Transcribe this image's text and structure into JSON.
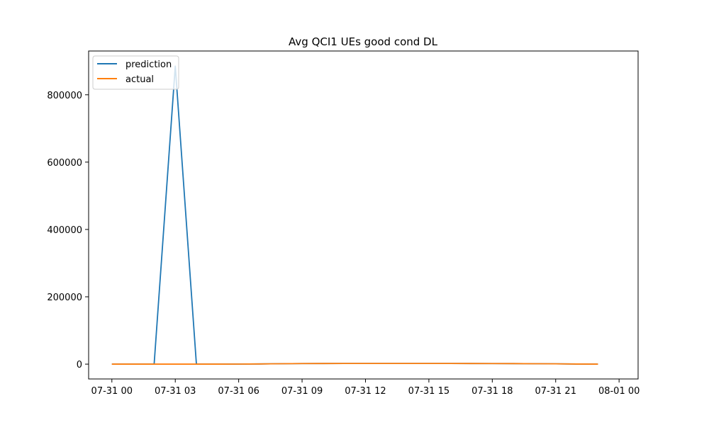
{
  "chart_data": {
    "type": "line",
    "title": "Avg QCI1 UEs good cond DL",
    "xlabel": "",
    "ylabel": "",
    "x": [
      "07-31 00:00",
      "07-31 01:00",
      "07-31 02:00",
      "07-31 03:00",
      "07-31 04:00",
      "07-31 05:00",
      "07-31 06:00",
      "07-31 07:00",
      "07-31 08:00",
      "07-31 09:00",
      "07-31 10:00",
      "07-31 11:00",
      "07-31 12:00",
      "07-31 13:00",
      "07-31 14:00",
      "07-31 15:00",
      "07-31 16:00",
      "07-31 17:00",
      "07-31 18:00",
      "07-31 19:00",
      "07-31 20:00",
      "07-31 21:00",
      "07-31 22:00",
      "07-31 23:00"
    ],
    "series": [
      {
        "name": "prediction",
        "color": "#1f77b4",
        "values": [
          0,
          0,
          0,
          885000,
          0,
          0,
          200,
          600,
          1200,
          1700,
          1900,
          2000,
          2000,
          2000,
          2000,
          2000,
          2000,
          1900,
          1800,
          1600,
          1300,
          900,
          300,
          0
        ]
      },
      {
        "name": "actual",
        "color": "#ff7f0e",
        "values": [
          0,
          0,
          0,
          0,
          0,
          0,
          200,
          600,
          1200,
          1700,
          1900,
          2000,
          2000,
          2000,
          2000,
          2000,
          2000,
          1900,
          1800,
          1600,
          1300,
          900,
          300,
          0
        ]
      }
    ],
    "xlim_hours": [
      -1.1,
      24.9
    ],
    "ylim": [
      -44000,
      930000
    ],
    "xticks": [
      {
        "hour": 0,
        "label": "07-31 00"
      },
      {
        "hour": 3,
        "label": "07-31 03"
      },
      {
        "hour": 6,
        "label": "07-31 06"
      },
      {
        "hour": 9,
        "label": "07-31 09"
      },
      {
        "hour": 12,
        "label": "07-31 12"
      },
      {
        "hour": 15,
        "label": "07-31 15"
      },
      {
        "hour": 18,
        "label": "07-31 18"
      },
      {
        "hour": 21,
        "label": "07-31 21"
      },
      {
        "hour": 24,
        "label": "08-01 00"
      }
    ],
    "yticks": [
      {
        "value": 0,
        "label": "0"
      },
      {
        "value": 200000,
        "label": "200000"
      },
      {
        "value": 400000,
        "label": "400000"
      },
      {
        "value": 600000,
        "label": "600000"
      },
      {
        "value": 800000,
        "label": "800000"
      }
    ],
    "grid": false,
    "legend_position": "top-left"
  }
}
